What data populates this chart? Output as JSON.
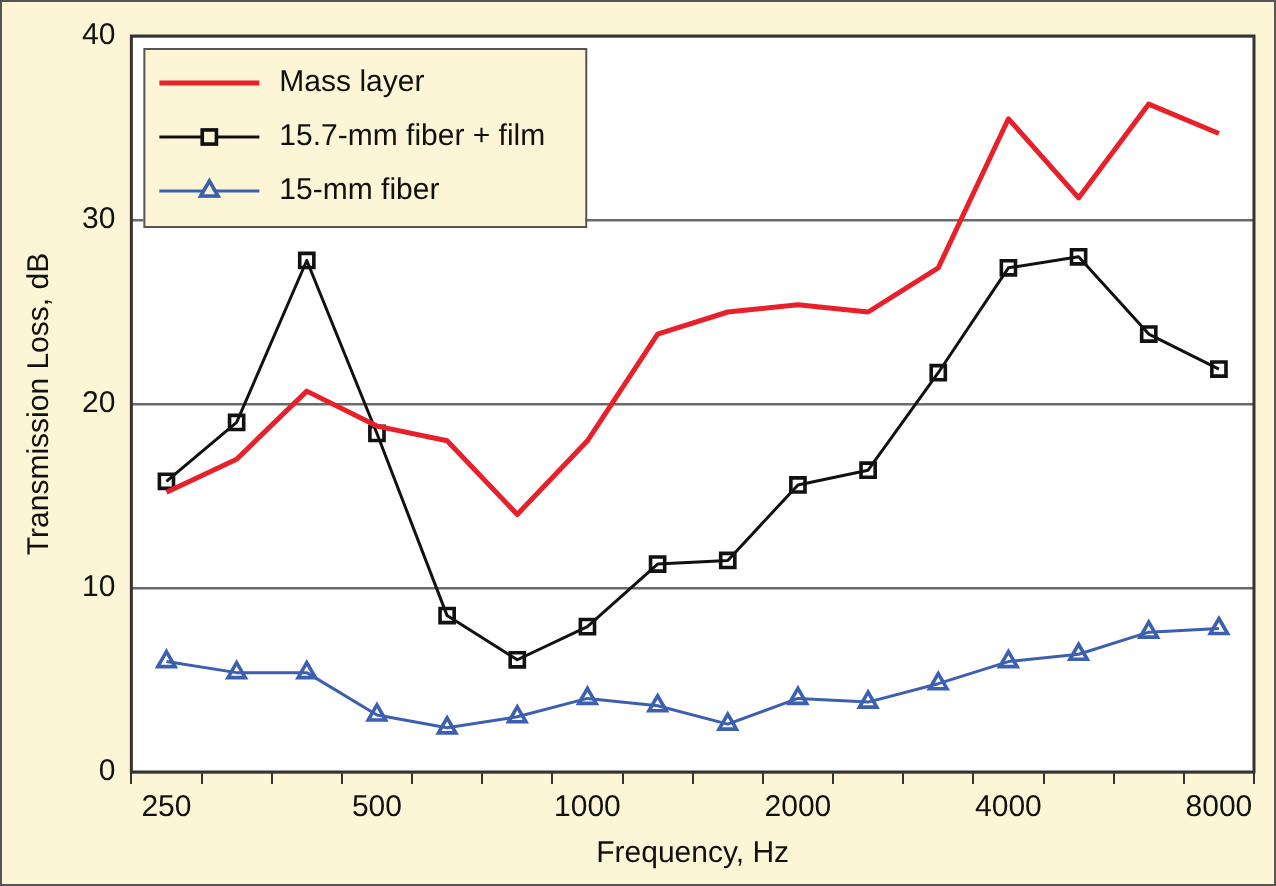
{
  "chart_data": {
    "type": "line",
    "xlabel": "Frequency, Hz",
    "ylabel": "Transmission Loss, dB",
    "categories": [
      "250",
      null,
      null,
      "500",
      null,
      null,
      "1000",
      null,
      null,
      "2000",
      null,
      null,
      "4000",
      null,
      null,
      "8000"
    ],
    "ylim": [
      0,
      40
    ],
    "yticks": [
      0,
      10,
      20,
      30,
      40
    ],
    "grid": "y",
    "legend": "top left",
    "series": [
      {
        "name": "Mass layer",
        "color": "#e8202a",
        "marker": "none",
        "values": [
          15.2,
          17,
          20.7,
          18.8,
          18,
          14,
          18,
          23.8,
          25,
          25.4,
          25,
          27.4,
          35.5,
          31.2,
          36.3,
          34.7
        ]
      },
      {
        "name": "15.7-mm fiber + film",
        "color": "#111111",
        "marker": "square",
        "values": [
          15.8,
          19,
          27.8,
          18.4,
          8.5,
          6.1,
          7.9,
          11.3,
          11.5,
          15.6,
          16.4,
          21.7,
          27.4,
          28,
          23.8,
          21.9
        ]
      },
      {
        "name": "15-mm fiber",
        "color": "#3d5fb0",
        "marker": "triangle",
        "values": [
          6,
          5.4,
          5.4,
          3.1,
          2.4,
          3,
          4,
          3.6,
          2.6,
          4,
          3.8,
          4.8,
          6,
          6.4,
          7.6,
          7.8
        ]
      }
    ]
  }
}
